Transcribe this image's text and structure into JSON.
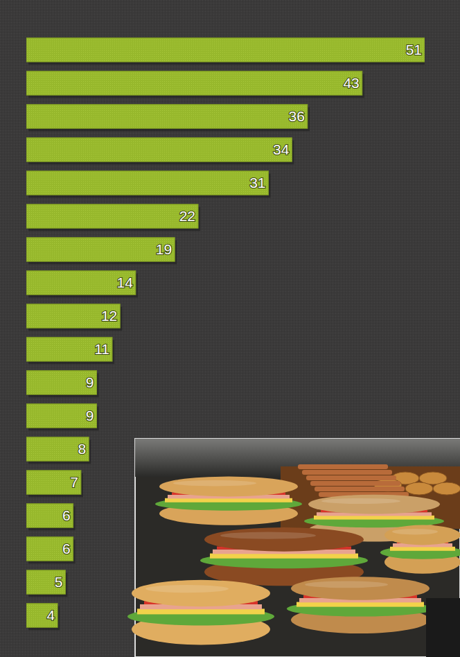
{
  "chart_data": {
    "type": "bar",
    "orientation": "horizontal",
    "categories": [
      null,
      null,
      null,
      null,
      null,
      null,
      null,
      null,
      null,
      null,
      null,
      null,
      null,
      null,
      null,
      null,
      null,
      null
    ],
    "values": [
      51,
      43,
      36,
      34,
      31,
      22,
      19,
      14,
      12,
      11,
      9,
      9,
      8,
      7,
      6,
      6,
      5,
      4
    ],
    "color": "#97b82c",
    "xlim": [
      0,
      51
    ],
    "data_labels": true,
    "tick_labels": false
  }
}
